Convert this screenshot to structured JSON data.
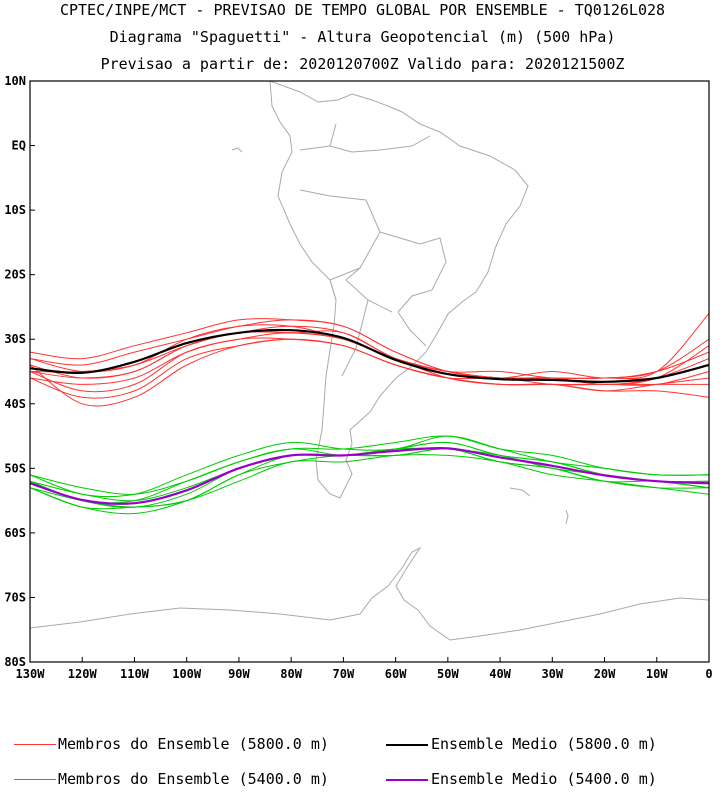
{
  "header": {
    "line1": "CPTEC/INPE/MCT - PREVISAO DE TEMPO GLOBAL POR ENSEMBLE - TQ0126L028",
    "line2": "Diagrama \"Spaguetti\" - Altura Geopotencial (m) (500 hPa)",
    "line3": "Previsao a partir de: 2020120700Z  Valido para: 2020121500Z"
  },
  "legend": {
    "red_members": "Membros do Ensemble (5800.0 m)",
    "black_mean": "Ensemble Medio (5800.0 m)",
    "green_members": "Membros do Ensemble (5400.0 m)",
    "purple_mean": "Ensemble Medio (5400.0 m)"
  },
  "chart_data": {
    "type": "line",
    "xlim": [
      -130,
      0
    ],
    "ylim": [
      -80,
      10
    ],
    "x_ticks": [
      {
        "value": -130,
        "label": "130W"
      },
      {
        "value": -120,
        "label": "120W"
      },
      {
        "value": -110,
        "label": "110W"
      },
      {
        "value": -100,
        "label": "100W"
      },
      {
        "value": -90,
        "label": "90W"
      },
      {
        "value": -80,
        "label": "80W"
      },
      {
        "value": -70,
        "label": "70W"
      },
      {
        "value": -60,
        "label": "60W"
      },
      {
        "value": -50,
        "label": "50W"
      },
      {
        "value": -40,
        "label": "40W"
      },
      {
        "value": -30,
        "label": "30W"
      },
      {
        "value": -20,
        "label": "20W"
      },
      {
        "value": -10,
        "label": "10W"
      },
      {
        "value": 0,
        "label": "0"
      }
    ],
    "y_ticks": [
      {
        "value": 10,
        "label": "10N"
      },
      {
        "value": 0,
        "label": "EQ"
      },
      {
        "value": -10,
        "label": "10S"
      },
      {
        "value": -20,
        "label": "20S"
      },
      {
        "value": -30,
        "label": "30S"
      },
      {
        "value": -40,
        "label": "40S"
      },
      {
        "value": -50,
        "label": "50S"
      },
      {
        "value": -60,
        "label": "60S"
      },
      {
        "value": -70,
        "label": "70S"
      },
      {
        "value": -80,
        "label": "80S"
      }
    ],
    "x": [
      -130,
      -120,
      -110,
      -100,
      -90,
      -80,
      -70,
      -60,
      -50,
      -40,
      -30,
      -20,
      -10,
      0
    ],
    "series": [
      {
        "name": "Membros do Ensemble (5800.0 m)",
        "color": "#ff3333",
        "kind": "members",
        "members": [
          [
            -33,
            -34,
            -32,
            -30,
            -28,
            -27,
            -28,
            -32,
            -35,
            -36,
            -36,
            -36,
            -35,
            -26
          ],
          [
            -34,
            -36,
            -35,
            -31,
            -29,
            -28,
            -29,
            -33,
            -35,
            -36,
            -36,
            -37,
            -36,
            -31
          ],
          [
            -35,
            -38,
            -37,
            -32,
            -30,
            -29,
            -30,
            -33,
            -35,
            -36,
            -36,
            -37,
            -36,
            -33
          ],
          [
            -36,
            -39,
            -38,
            -33,
            -31,
            -30,
            -31,
            -34,
            -36,
            -36,
            -37,
            -37,
            -37,
            -35
          ],
          [
            -34,
            -40,
            -39,
            -34,
            -31,
            -30,
            -31,
            -34,
            -36,
            -37,
            -37,
            -38,
            -37,
            -36
          ],
          [
            -32,
            -33,
            -31,
            -29,
            -27,
            -27,
            -28,
            -32,
            -35,
            -36,
            -35,
            -36,
            -35,
            -32
          ],
          [
            -35,
            -35,
            -34,
            -31,
            -29,
            -29,
            -30,
            -33,
            -35,
            -35,
            -36,
            -36,
            -36,
            -34
          ],
          [
            -36,
            -37,
            -36,
            -32,
            -30,
            -30,
            -31,
            -34,
            -36,
            -37,
            -37,
            -37,
            -37,
            -37
          ],
          [
            -33,
            -35,
            -34,
            -30,
            -28,
            -28,
            -30,
            -33,
            -36,
            -37,
            -37,
            -38,
            -38,
            -39
          ],
          [
            -35,
            -36,
            -35,
            -31,
            -29,
            -29,
            -29,
            -33,
            -35,
            -36,
            -36,
            -36,
            -35,
            -30
          ]
        ]
      },
      {
        "name": "Ensemble Medio (5800.0 m)",
        "color": "#000000",
        "kind": "mean",
        "values": [
          -34.5,
          -35.2,
          -33.5,
          -30.6,
          -29.0,
          -28.6,
          -29.8,
          -33.2,
          -35.4,
          -36.2,
          -36.3,
          -36.6,
          -36.0,
          -34.0
        ]
      },
      {
        "name": "Membros do Ensemble (5400.0 m)",
        "color": "#00cc00",
        "kind": "members",
        "members": [
          [
            -51,
            -54,
            -54,
            -51,
            -48,
            -46,
            -47,
            -47,
            -45,
            -47,
            -49,
            -50,
            -51,
            -51
          ],
          [
            -52,
            -55,
            -55,
            -52,
            -49,
            -47,
            -48,
            -47,
            -46,
            -48,
            -49,
            -51,
            -52,
            -52
          ],
          [
            -52,
            -55,
            -56,
            -54,
            -50,
            -48,
            -48,
            -47,
            -47,
            -48,
            -50,
            -51,
            -52,
            -53
          ],
          [
            -53,
            -56,
            -56,
            -55,
            -51,
            -49,
            -48,
            -48,
            -47,
            -49,
            -50,
            -52,
            -53,
            -53
          ],
          [
            -53,
            -55,
            -56,
            -55,
            -52,
            -49,
            -49,
            -48,
            -48,
            -49,
            -51,
            -52,
            -53,
            -54
          ],
          [
            -51,
            -53,
            -54,
            -52,
            -49,
            -47,
            -47,
            -46,
            -45,
            -47,
            -48,
            -50,
            -51,
            -51
          ],
          [
            -52,
            -54,
            -55,
            -53,
            -50,
            -48,
            -48,
            -47,
            -46,
            -48,
            -49,
            -51,
            -52,
            -52
          ],
          [
            -53,
            -56,
            -57,
            -55,
            -51,
            -48,
            -48,
            -48,
            -47,
            -49,
            -50,
            -52,
            -52,
            -53
          ]
        ]
      },
      {
        "name": "Ensemble Medio (5400.0 m)",
        "color": "#9900cc",
        "kind": "mean",
        "values": [
          -52.3,
          -54.9,
          -55.4,
          -53.4,
          -50.0,
          -48.0,
          -48.0,
          -47.3,
          -46.9,
          -48.3,
          -49.6,
          -51.1,
          -52.0,
          -52.3
        ]
      }
    ]
  }
}
